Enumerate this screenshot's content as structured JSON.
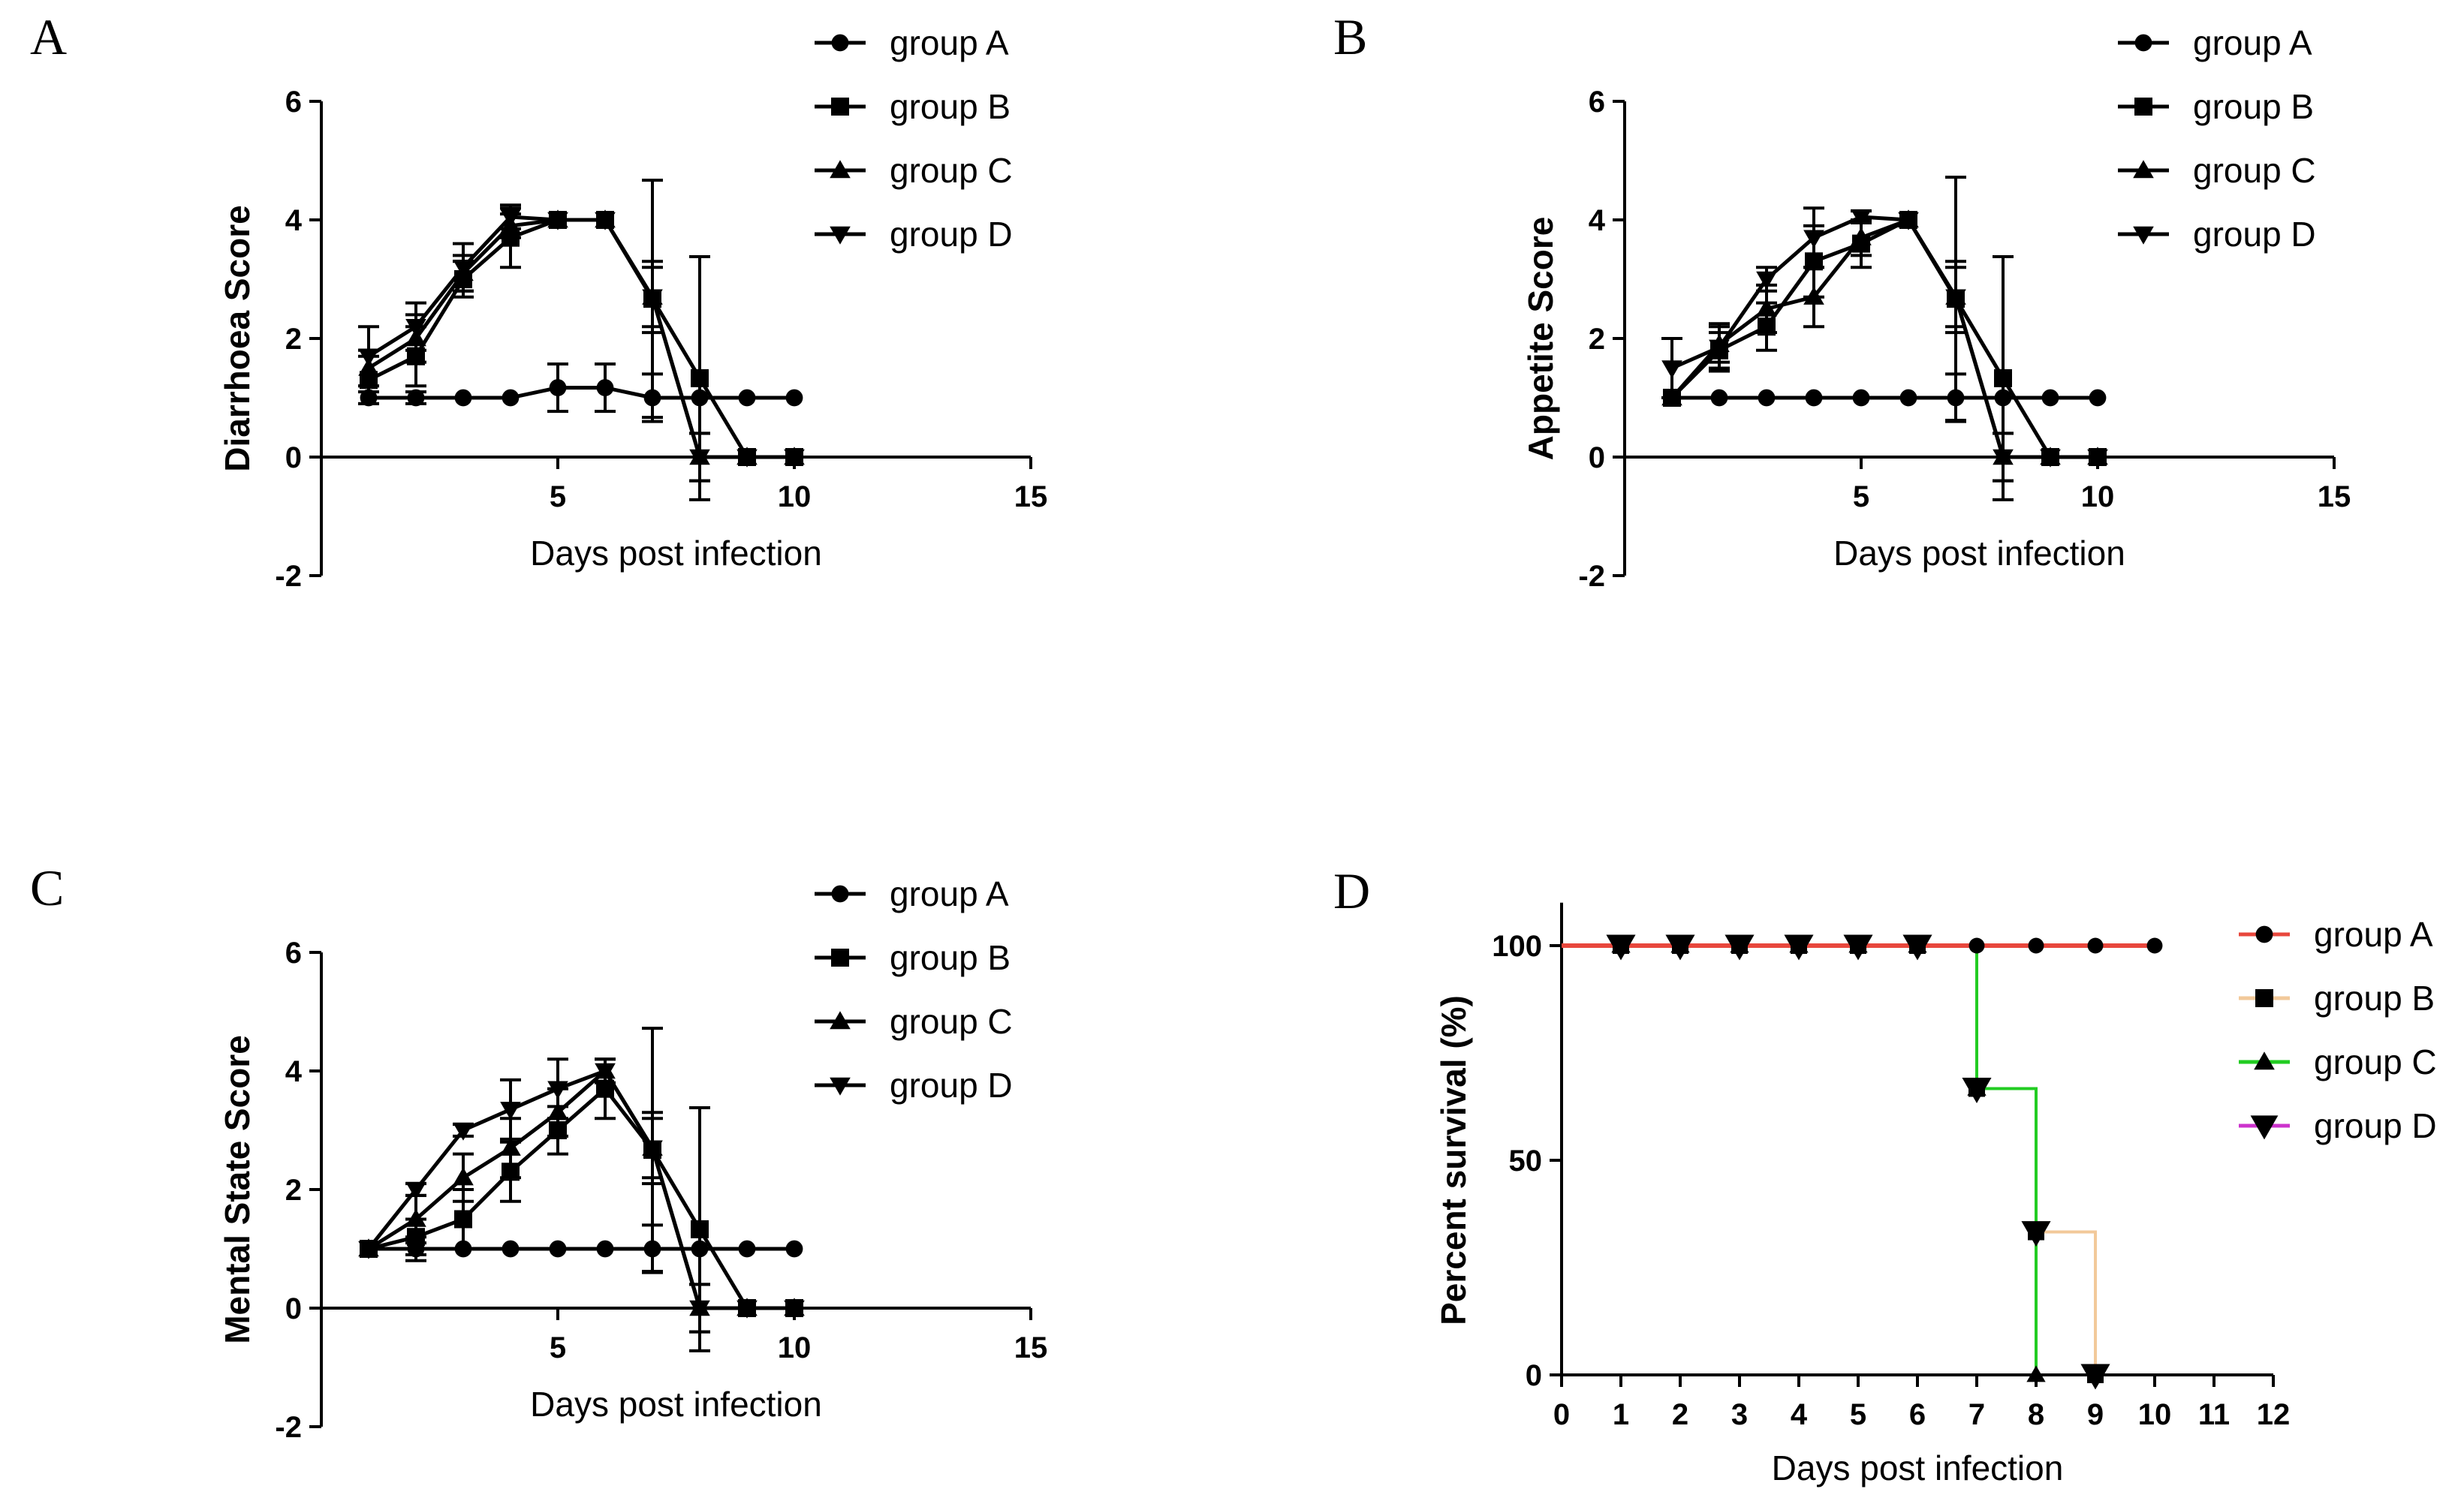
{
  "chart_data": [
    {
      "panel": "A",
      "type": "line",
      "xlabel": "Days post infection",
      "ylabel": "Diarrhoea Score",
      "xlim": [
        0,
        15
      ],
      "ylim": [
        -2,
        6
      ],
      "xticks": [
        5,
        10,
        15
      ],
      "yticks": [
        -2,
        0,
        2,
        4,
        6
      ],
      "x": [
        1,
        2,
        3,
        4,
        5,
        6,
        7,
        8,
        9,
        10
      ],
      "series": [
        {
          "name": "group A",
          "marker": "circle",
          "values": [
            1,
            1,
            1,
            1,
            1.17,
            1.17,
            1,
            1,
            1,
            1
          ],
          "errors": [
            0.1,
            0.1,
            0,
            0,
            0.4,
            0.4,
            0.4,
            0,
            0,
            0
          ]
        },
        {
          "name": "group B",
          "marker": "square",
          "values": [
            1.3,
            1.7,
            3,
            3.7,
            4,
            4,
            2.67,
            1.33,
            0,
            0
          ],
          "errors": [
            0.4,
            0.5,
            0.3,
            0.5,
            0,
            0,
            2.0,
            2.05,
            0,
            0
          ]
        },
        {
          "name": "group C",
          "marker": "triangle-up",
          "values": [
            1.5,
            2,
            3.1,
            3.9,
            4,
            4,
            2.7,
            0,
            0,
            0
          ],
          "errors": [
            0.3,
            0.4,
            0.3,
            0.2,
            0,
            0,
            0.6,
            0.4,
            0,
            0
          ]
        },
        {
          "name": "group D",
          "marker": "triangle-down",
          "values": [
            1.7,
            2.2,
            3.2,
            4.05,
            4,
            4,
            2.7,
            0,
            0,
            0
          ],
          "errors": [
            0.5,
            0.4,
            0.4,
            0.2,
            0,
            0,
            0.5,
            0.4,
            0,
            0
          ]
        }
      ]
    },
    {
      "panel": "B",
      "type": "line",
      "xlabel": "Days post infection",
      "ylabel": "Appetite Score",
      "xlim": [
        0,
        15
      ],
      "ylim": [
        -2,
        6
      ],
      "xticks": [
        5,
        10,
        15
      ],
      "yticks": [
        -2,
        0,
        2,
        4,
        6
      ],
      "x": [
        1,
        2,
        3,
        4,
        5,
        6,
        7,
        8,
        9,
        10
      ],
      "series": [
        {
          "name": "group A",
          "marker": "circle",
          "values": [
            1,
            1,
            1,
            1,
            1,
            1,
            1,
            1,
            1,
            1
          ],
          "errors": [
            0,
            0,
            0,
            0,
            0,
            0,
            0.4,
            0,
            0,
            0
          ]
        },
        {
          "name": "group B",
          "marker": "square",
          "values": [
            1,
            1.8,
            2.2,
            3.3,
            3.6,
            4,
            2.67,
            1.33,
            0,
            0
          ],
          "errors": [
            0,
            0.3,
            0.4,
            0.6,
            0.4,
            0,
            2.05,
            2.05,
            0,
            0
          ]
        },
        {
          "name": "group C",
          "marker": "triangle-up",
          "values": [
            1,
            1.9,
            2.5,
            2.7,
            3.7,
            4,
            2.7,
            0,
            0,
            0
          ],
          "errors": [
            0,
            0.3,
            0.4,
            0.5,
            0.3,
            0,
            0.6,
            0.4,
            0,
            0
          ]
        },
        {
          "name": "group D",
          "marker": "triangle-down",
          "values": [
            1.5,
            1.85,
            3,
            3.7,
            4.05,
            4,
            2.7,
            0,
            0,
            0
          ],
          "errors": [
            0.5,
            0.4,
            0.2,
            0.5,
            0.1,
            0,
            0.5,
            0.4,
            0,
            0
          ]
        }
      ]
    },
    {
      "panel": "C",
      "type": "line",
      "xlabel": "Days post infection",
      "ylabel": "Mental State Score",
      "xlim": [
        0,
        15
      ],
      "ylim": [
        -2,
        6
      ],
      "xticks": [
        5,
        10,
        15
      ],
      "yticks": [
        -2,
        0,
        2,
        4,
        6
      ],
      "x": [
        1,
        2,
        3,
        4,
        5,
        6,
        7,
        8,
        9,
        10
      ],
      "series": [
        {
          "name": "group A",
          "marker": "circle",
          "values": [
            1,
            1,
            1,
            1,
            1,
            1,
            1,
            1,
            1,
            1
          ],
          "errors": [
            0,
            0.2,
            0,
            0,
            0,
            0,
            0.4,
            0,
            0,
            0
          ]
        },
        {
          "name": "group B",
          "marker": "square",
          "values": [
            1,
            1.2,
            1.5,
            2.3,
            3,
            3.7,
            2.67,
            1.33,
            0,
            0
          ],
          "errors": [
            0,
            0.3,
            0.5,
            0.5,
            0.4,
            0.5,
            2.05,
            2.05,
            0,
            0
          ]
        },
        {
          "name": "group C",
          "marker": "triangle-up",
          "values": [
            1,
            1.5,
            2.2,
            2.7,
            3.3,
            4,
            2.7,
            0,
            0,
            0
          ],
          "errors": [
            0,
            0.4,
            0.4,
            0.5,
            0.4,
            0,
            0.6,
            0.4,
            0,
            0
          ]
        },
        {
          "name": "group D",
          "marker": "triangle-down",
          "values": [
            1,
            2,
            3,
            3.35,
            3.7,
            4,
            2.7,
            0,
            0,
            0
          ],
          "errors": [
            0,
            0.1,
            0.1,
            0.5,
            0.5,
            0.2,
            0.5,
            0.4,
            0,
            0
          ]
        }
      ]
    },
    {
      "panel": "D",
      "type": "line",
      "subtype": "survival-step",
      "xlabel": "Days post infection",
      "ylabel": "Percent survival (%)",
      "xlim": [
        0,
        12
      ],
      "ylim": [
        0,
        110
      ],
      "xticks": [
        0,
        1,
        2,
        3,
        4,
        5,
        6,
        7,
        8,
        9,
        10,
        11,
        12
      ],
      "yticks": [
        0,
        50,
        100
      ],
      "series": [
        {
          "name": "group A",
          "color": "#e8473c",
          "marker": "circle",
          "x": [
            1,
            2,
            3,
            4,
            5,
            6,
            7,
            8,
            9,
            10
          ],
          "values": [
            100,
            100,
            100,
            100,
            100,
            100,
            100,
            100,
            100,
            100
          ]
        },
        {
          "name": "group B",
          "color": "#f2c99a",
          "marker": "square",
          "x": [
            1,
            2,
            3,
            4,
            5,
            6,
            7,
            8,
            9
          ],
          "values": [
            100,
            100,
            100,
            100,
            100,
            100,
            66.7,
            33.3,
            0
          ]
        },
        {
          "name": "group C",
          "color": "#22cc22",
          "marker": "triangle-up",
          "x": [
            1,
            2,
            3,
            4,
            5,
            6,
            7,
            8
          ],
          "values": [
            100,
            100,
            100,
            100,
            100,
            100,
            66.7,
            0
          ]
        },
        {
          "name": "group D",
          "color": "#cc33cc",
          "marker": "triangle-down",
          "x": [
            1,
            2,
            3,
            4,
            5,
            6,
            7,
            8,
            9
          ],
          "values": [
            100,
            100,
            100,
            100,
            100,
            100,
            66.7,
            33.3,
            0
          ]
        }
      ]
    }
  ]
}
